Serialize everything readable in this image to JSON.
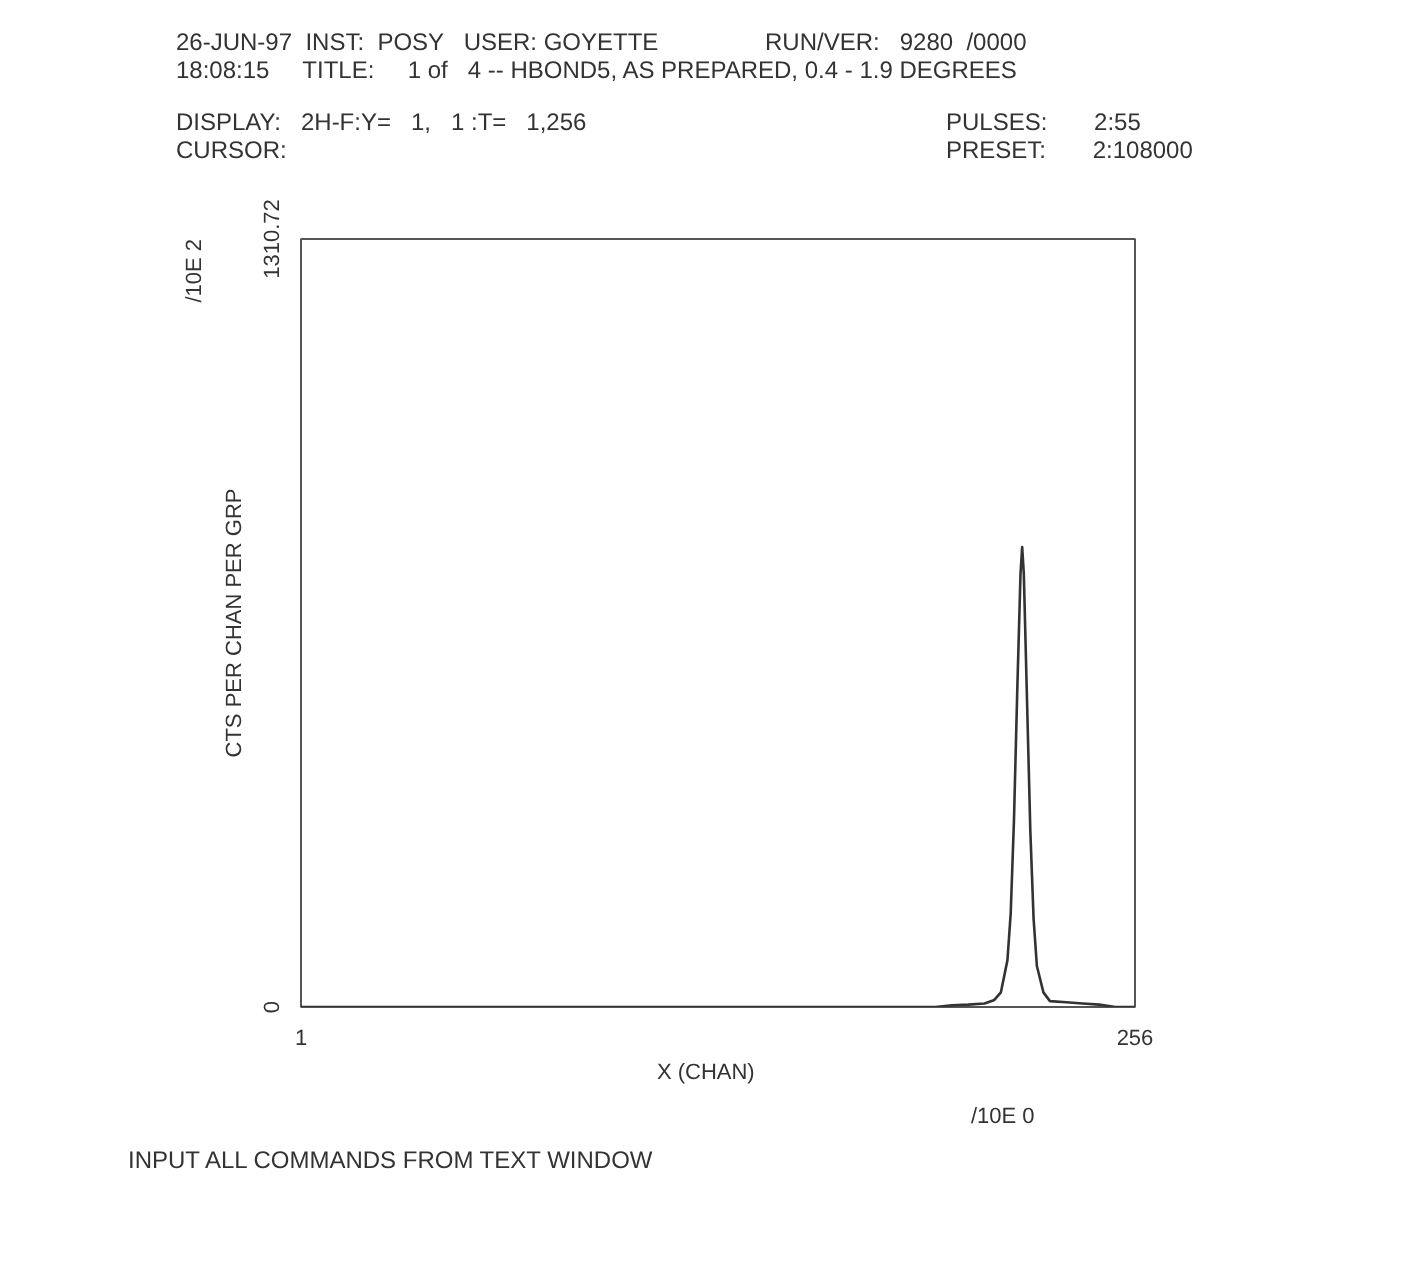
{
  "chart_data": {
    "type": "line",
    "title": "26-JUN-97  INST:  POSY   USER: GOYETTE                RUN/VER:   9280  /0000",
    "subtitle": "18:08:15     TITLE:     1 of   4 -- HBOND5, AS PREPARED, 0.4 - 1.9 DEGREES",
    "xlabel": "X     (CHAN)",
    "ylabel": "CTS PER CHAN PER GRP",
    "annotations": [
      "DISPLAY:   2H-F:Y=   1,   1 :T=   1,256",
      "CURSOR:",
      "PULSES:       2:55",
      "PRESET:       2:108000",
      "/10E 0",
      "/10E 2",
      "INPUT ALL COMMANDS FROM TEXT WINDOW"
    ],
    "x": [
      1,
      195,
      200,
      205,
      210,
      213,
      215,
      217,
      218,
      219,
      220,
      221,
      221.5,
      222,
      223,
      224,
      225,
      226,
      228,
      230,
      235,
      240,
      245,
      250,
      256
    ],
    "series": [
      {
        "color": "#333333",
        "values": [
          0,
          0,
          3,
          4,
          6,
          12,
          25,
          80,
          160,
          320,
          540,
          740,
          785,
          740,
          520,
          300,
          150,
          70,
          25,
          10,
          8,
          6,
          4,
          0,
          0
        ]
      }
    ],
    "xlim": [
      1,
      256
    ],
    "xticks": [
      1,
      256
    ],
    "ylim": [
      0,
      1310.72
    ],
    "yticks": [
      0,
      1310.72
    ],
    "line_style": "solid"
  }
}
